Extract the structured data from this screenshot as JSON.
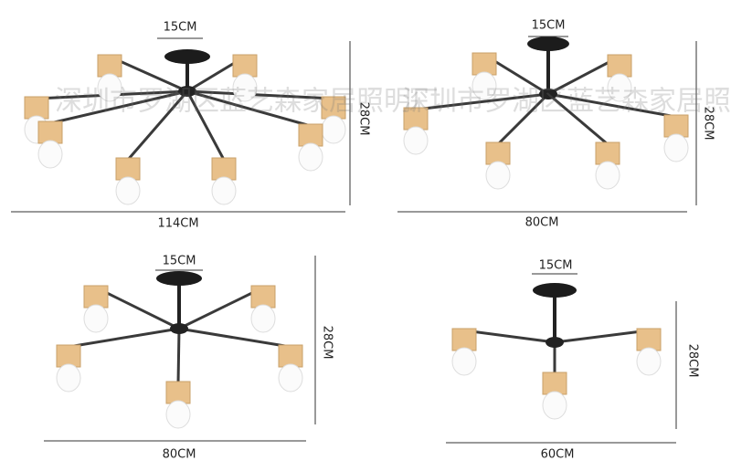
{
  "watermark": "深圳市罗湖区蓝艺森家居照明厂",
  "lamps": [
    {
      "canopy_width": "15CM",
      "height": "28CM",
      "width": "114CM"
    },
    {
      "canopy_width": "15CM",
      "height": "28CM",
      "width": "80CM"
    },
    {
      "canopy_width": "15CM",
      "height": "28CM",
      "width": "80CM"
    },
    {
      "canopy_width": "15CM",
      "height": "28CM",
      "width": "60CM"
    }
  ]
}
